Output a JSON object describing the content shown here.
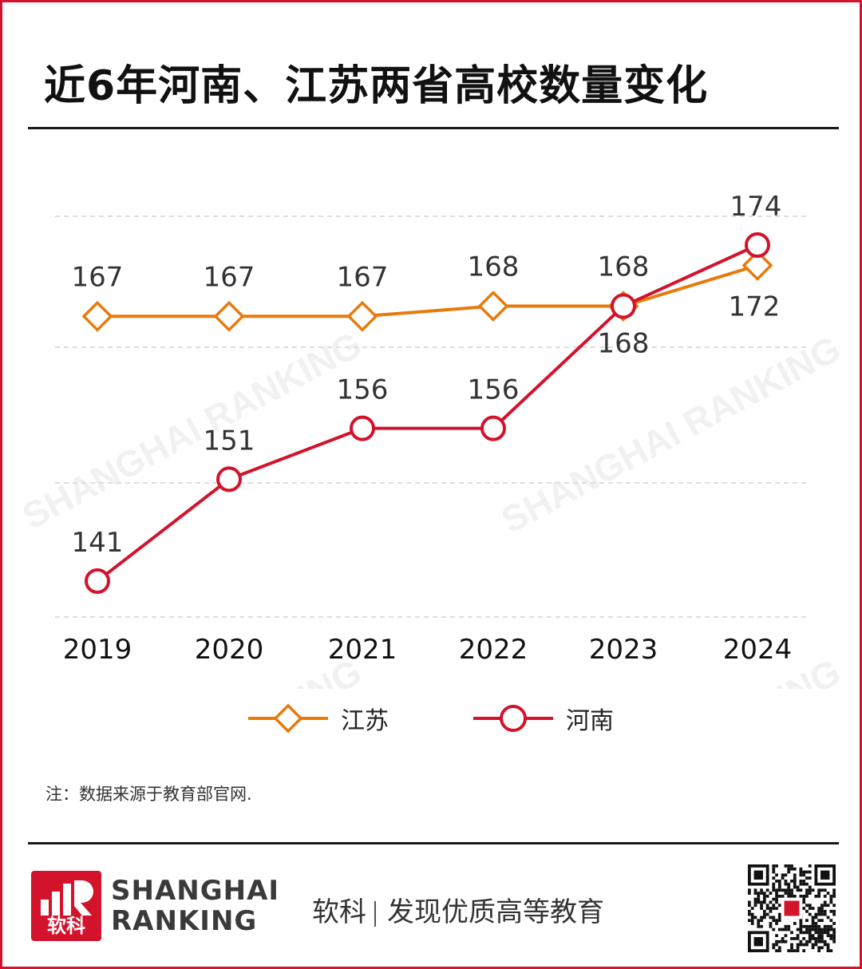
{
  "title": "近6年河南、江苏两省高校数量变化",
  "note": "注：数据来源于教育部官网.",
  "footer": {
    "logo_text": "软科",
    "brand_line1": "SHANGHAI",
    "brand_line2": "RANKING",
    "slogan_left": "软科",
    "slogan_right": "发现优质高等教育"
  },
  "watermark": "SHANGHAI RANKING",
  "colors": {
    "jiangsu": "#e87a0c",
    "henan": "#d3122b",
    "brand_red": "#d3122b",
    "grid": "#dddddd"
  },
  "chart_data": {
    "type": "line",
    "title": "近6年河南、江苏两省高校数量变化",
    "x": [
      "2019",
      "2020",
      "2021",
      "2022",
      "2023",
      "2024"
    ],
    "series": [
      {
        "name": "江苏",
        "values": [
          167,
          167,
          167,
          168,
          168,
          172
        ],
        "marker": "diamond",
        "color": "#e87a0c"
      },
      {
        "name": "河南",
        "values": [
          141,
          151,
          156,
          156,
          168,
          174
        ],
        "marker": "circle",
        "color": "#d3122b"
      }
    ],
    "ylim": [
      134,
      176
    ],
    "grid": true,
    "legend": "bottom"
  }
}
